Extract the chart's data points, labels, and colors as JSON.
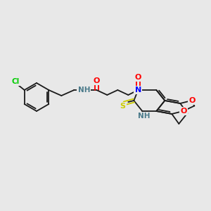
{
  "bg_color": "#e8e8e8",
  "bond_color": "#1a1a1a",
  "colors": {
    "N": "#0000ff",
    "O": "#ff0000",
    "S": "#cccc00",
    "Cl": "#00cc00",
    "H": "#4a7a8a",
    "C": "#1a1a1a"
  }
}
